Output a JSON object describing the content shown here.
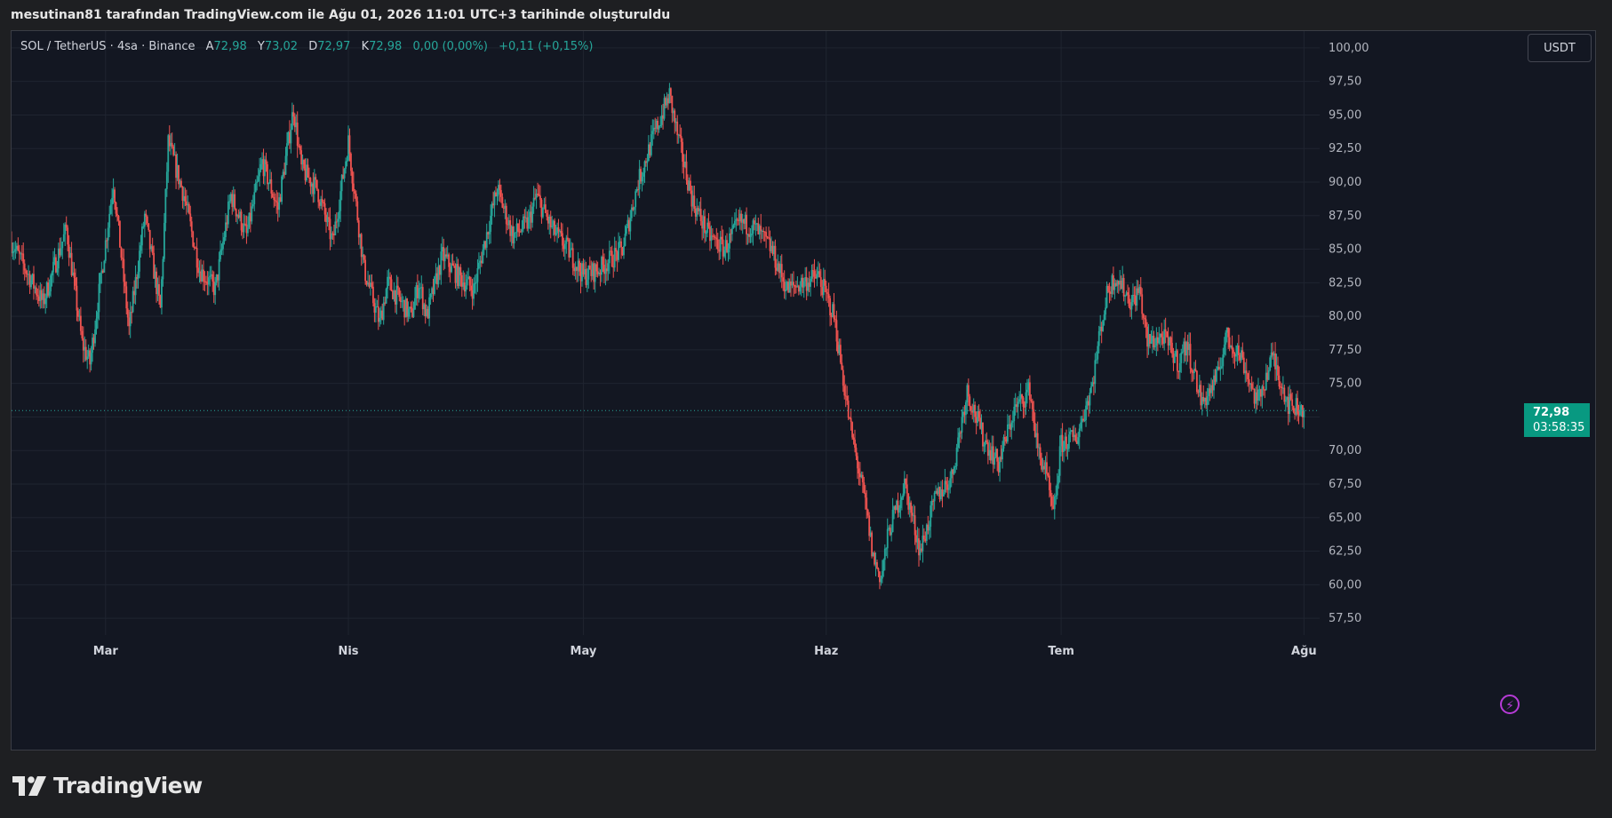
{
  "caption": "mesutinan81 tarafından TradingView.com ile Ağu 01, 2026 11:01 UTC+3 tarihinde oluşturuldu",
  "legend": {
    "symbol": "SOL / TetherUS · 4sa · Binance",
    "open_label": "A",
    "open_value": "72,98",
    "high_label": "Y",
    "high_value": "73,02",
    "low_label": "D",
    "low_value": "72,97",
    "close_label": "K",
    "close_value": "72,98",
    "change": "0,00 (0,00%)",
    "change2": "+0,11 (+0,15%)"
  },
  "currency_button": "USDT",
  "current_price": {
    "value": "72,98",
    "countdown": "03:58:35",
    "price": 72.98
  },
  "brand": "TradingView",
  "icons": {
    "bolt": "bolt-icon",
    "logo": "tradingview-logo-icon"
  },
  "colors": {
    "up": "#26a69a",
    "down": "#ef5350",
    "background": "#131722",
    "grid": "#1f2430",
    "price_tag": "#089981"
  },
  "chart_data": {
    "type": "candlestick",
    "ylim": [
      56.25,
      101.25
    ],
    "ytick_values": [
      100,
      97.5,
      95,
      92.5,
      90,
      87.5,
      85,
      82.5,
      80,
      77.5,
      75,
      72.5,
      70,
      67.5,
      65,
      62.5,
      60,
      57.5
    ],
    "ytick_labels": [
      "100,00",
      "97,50",
      "95,00",
      "92,50",
      "90,00",
      "87,50",
      "85,00",
      "82,50",
      "80,00",
      "77,50",
      "75,00",
      "",
      "70,00",
      "67,50",
      "65,00",
      "62,50",
      "60,00",
      "57,50"
    ],
    "xtick_labels": [
      "Mar",
      "Nis",
      "May",
      "Haz",
      "Tem",
      "Ağu"
    ],
    "xtick_days": [
      31,
      62,
      92,
      123,
      153,
      184
    ],
    "x_range_days": [
      19,
      186
    ],
    "grid": true,
    "price_anchors": [
      [
        19,
        85.5
      ],
      [
        23,
        81.0
      ],
      [
        26,
        86.5
      ],
      [
        28,
        78.0
      ],
      [
        29,
        76.5
      ],
      [
        32,
        90.0
      ],
      [
        34,
        79.0
      ],
      [
        36,
        87.5
      ],
      [
        38,
        80.5
      ],
      [
        39,
        93.0
      ],
      [
        41,
        89.0
      ],
      [
        43,
        83.5
      ],
      [
        45,
        82.0
      ],
      [
        47,
        89.0
      ],
      [
        49,
        86.0
      ],
      [
        51,
        91.5
      ],
      [
        53,
        88.0
      ],
      [
        55,
        95.5
      ],
      [
        56,
        91.0
      ],
      [
        58,
        89.5
      ],
      [
        60,
        85.5
      ],
      [
        62,
        93.0
      ],
      [
        64,
        83.5
      ],
      [
        66,
        79.5
      ],
      [
        67,
        82.5
      ],
      [
        70,
        80.0
      ],
      [
        71,
        82.5
      ],
      [
        72,
        80.0
      ],
      [
        74,
        84.5
      ],
      [
        76,
        83.0
      ],
      [
        78,
        82.0
      ],
      [
        81,
        89.5
      ],
      [
        83,
        86.0
      ],
      [
        85,
        87.0
      ],
      [
        86,
        89.0
      ],
      [
        88,
        86.5
      ],
      [
        90,
        85.0
      ],
      [
        92,
        83.0
      ],
      [
        94,
        83.5
      ],
      [
        97,
        85.0
      ],
      [
        99,
        90.0
      ],
      [
        101,
        93.5
      ],
      [
        103,
        96.5
      ],
      [
        104,
        93.5
      ],
      [
        106,
        88.5
      ],
      [
        108,
        86.0
      ],
      [
        110,
        85.0
      ],
      [
        112,
        87.0
      ],
      [
        114,
        86.5
      ],
      [
        116,
        85.0
      ],
      [
        118,
        82.0
      ],
      [
        120,
        82.5
      ],
      [
        122,
        83.0
      ],
      [
        124,
        80.0
      ],
      [
        126,
        72.0
      ],
      [
        128,
        66.0
      ],
      [
        129,
        62.0
      ],
      [
        130,
        60.5
      ],
      [
        131,
        64.0
      ],
      [
        133,
        67.5
      ],
      [
        135,
        62.5
      ],
      [
        137,
        66.5
      ],
      [
        139,
        68.0
      ],
      [
        141,
        74.5
      ],
      [
        143,
        71.0
      ],
      [
        145,
        69.0
      ],
      [
        147,
        73.0
      ],
      [
        149,
        74.5
      ],
      [
        150,
        70.0
      ],
      [
        151,
        68.5
      ],
      [
        152,
        65.0
      ],
      [
        153,
        70.5
      ],
      [
        155,
        71.0
      ],
      [
        157,
        75.0
      ],
      [
        158,
        79.0
      ],
      [
        159,
        82.0
      ],
      [
        160,
        83.0
      ],
      [
        162,
        81.0
      ],
      [
        163,
        82.0
      ],
      [
        164,
        78.0
      ],
      [
        166,
        78.5
      ],
      [
        168,
        76.5
      ],
      [
        169,
        78.0
      ],
      [
        171,
        73.5
      ],
      [
        173,
        75.5
      ],
      [
        174,
        78.5
      ],
      [
        176,
        77.0
      ],
      [
        178,
        73.5
      ],
      [
        180,
        77.0
      ],
      [
        182,
        73.5
      ],
      [
        184,
        72.98
      ]
    ]
  }
}
